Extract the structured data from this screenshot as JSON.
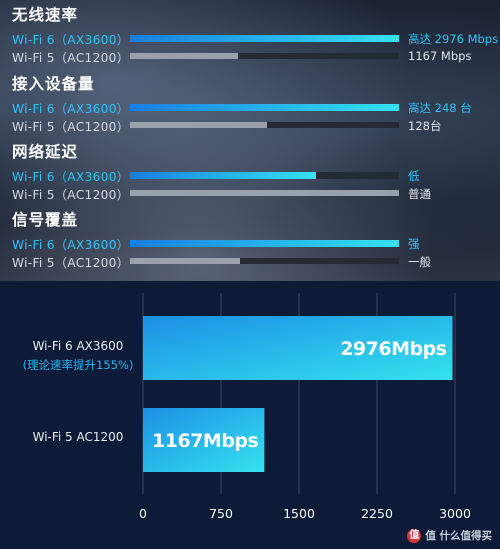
{
  "top_panel": {
    "sections": [
      {
        "title": "无线速率",
        "rows": [
          {
            "label": "Wi-Fi 6（AX3600）",
            "value": "高达 2976 Mbps",
            "fill": 1.0
          },
          {
            "label": "Wi-Fi 5（AC1200）",
            "value": "1167 Mbps",
            "fill": 0.4
          }
        ]
      },
      {
        "title": "接入设备量",
        "rows": [
          {
            "label": "Wi-Fi 6（AX3600）",
            "value": "高达 248 台",
            "fill": 1.0
          },
          {
            "label": "Wi-Fi 5（AC1200）",
            "value": "128台",
            "fill": 0.51
          }
        ]
      },
      {
        "title": "网络延迟",
        "rows": [
          {
            "label": "Wi-Fi 6（AX3600）",
            "value": "低",
            "fill": 0.69
          },
          {
            "label": "Wi-Fi 5（AC1200）",
            "value": "普通",
            "fill": 1.0
          }
        ]
      },
      {
        "title": "信号覆盖",
        "rows": [
          {
            "label": "Wi-Fi 6（AX3600）",
            "value": "强",
            "fill": 1.0
          },
          {
            "label": "Wi-Fi 5（AC1200）",
            "value": "一般",
            "fill": 0.41
          }
        ]
      }
    ]
  },
  "chart_data": {
    "type": "bar",
    "orientation": "horizontal",
    "categories": [
      "Wi-Fi 6 AX3600",
      "Wi-Fi 5 AC1200"
    ],
    "category_notes": [
      "(理论速率提升155%)",
      ""
    ],
    "values": [
      2976,
      1167
    ],
    "data_labels": [
      "2976Mbps",
      "1167Mbps"
    ],
    "xlim": [
      0,
      3000
    ],
    "xticks": [
      "0",
      "750",
      "1500",
      "2250",
      "3000"
    ],
    "title": "",
    "xlabel": "",
    "ylabel": "",
    "grid": true,
    "colors": {
      "bar_start": "#1c8fe6",
      "bar_end": "#34e2ee",
      "grid": "#3a4660",
      "tick_text": "#ffffff"
    }
  },
  "watermark": {
    "text": "值 什么值得买",
    "logo": "值"
  }
}
